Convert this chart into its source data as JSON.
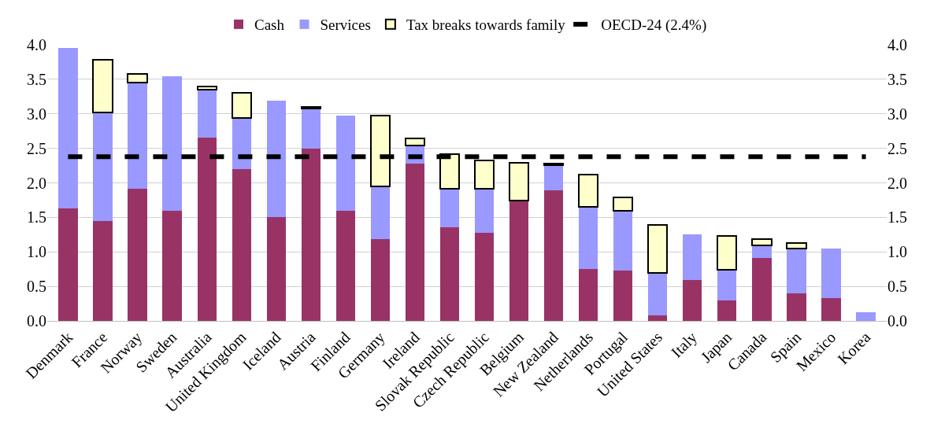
{
  "chart_data": {
    "type": "bar",
    "stacked": true,
    "categories": [
      "Denmark",
      "France",
      "Norway",
      "Sweden",
      "Australia",
      "United Kingdom",
      "Iceland",
      "Austria",
      "Finland",
      "Germany",
      "Ireland",
      "Slovak Republic",
      "Czech Republic",
      "Belgium",
      "New Zealand",
      "Netherlands",
      "Portugal",
      "United States",
      "Italy",
      "Japan",
      "Canada",
      "Spain",
      "Mexico",
      "Korea"
    ],
    "series": [
      {
        "name": "Cash",
        "color": "#993366",
        "values": [
          1.63,
          1.45,
          1.92,
          1.6,
          2.65,
          2.2,
          1.51,
          2.5,
          1.6,
          1.18,
          2.28,
          1.36,
          1.28,
          1.74,
          1.89,
          0.75,
          0.73,
          0.08,
          0.59,
          0.3,
          0.91,
          0.4,
          0.33,
          null
        ]
      },
      {
        "name": "Services",
        "color": "#9999ff",
        "values": [
          2.33,
          1.57,
          1.53,
          1.94,
          0.7,
          0.74,
          1.68,
          0.58,
          1.38,
          0.77,
          0.26,
          0.55,
          0.63,
          null,
          0.37,
          0.9,
          0.86,
          0.62,
          0.66,
          0.44,
          0.18,
          0.65,
          0.72,
          0.12
        ]
      },
      {
        "name": "Tax breaks towards family",
        "color": "#ffffcc",
        "values": [
          null,
          0.76,
          0.13,
          null,
          0.05,
          0.36,
          null,
          0.02,
          null,
          1.02,
          0.1,
          0.51,
          0.42,
          0.55,
          0.02,
          0.47,
          0.2,
          0.69,
          null,
          0.49,
          0.1,
          0.08,
          null,
          null
        ]
      },
      {
        "name": "OECD-24 (2.4%)",
        "type": "line",
        "line_style": "dashed",
        "color": "#000000",
        "values": [
          2.38,
          2.38,
          2.38,
          2.38,
          2.38,
          2.38,
          2.38,
          2.38,
          2.38,
          2.38,
          2.38,
          2.38,
          2.38,
          2.38,
          2.38,
          2.38,
          2.38,
          2.38,
          2.38,
          2.38,
          2.38,
          2.38,
          2.38,
          2.38
        ]
      }
    ],
    "ylim": [
      0,
      4
    ],
    "yticks": [
      {
        "value": 0,
        "label": "0.0"
      },
      {
        "value": 0.5,
        "label": "0.5"
      },
      {
        "value": 1,
        "label": "1.0"
      },
      {
        "value": 1.5,
        "label": "1.5"
      },
      {
        "value": 2,
        "label": "2.0"
      },
      {
        "value": 2.5,
        "label": "2.5"
      },
      {
        "value": 3,
        "label": "3.0"
      },
      {
        "value": 3.5,
        "label": "3.5"
      },
      {
        "value": 4,
        "label": "4.0"
      }
    ],
    "y2lim": [
      0,
      4
    ],
    "y2ticks": [
      {
        "value": 0,
        "label": "0.0"
      },
      {
        "value": 0.5,
        "label": "0.5"
      },
      {
        "value": 1,
        "label": "1.0"
      },
      {
        "value": 1.5,
        "label": "1.5"
      },
      {
        "value": 2,
        "label": "2.0"
      },
      {
        "value": 2.5,
        "label": "2.5"
      },
      {
        "value": 3,
        "label": "3.0"
      },
      {
        "value": 3.5,
        "label": "3.5"
      },
      {
        "value": 4,
        "label": "4.0"
      }
    ],
    "grid": "y",
    "legend": "top"
  }
}
